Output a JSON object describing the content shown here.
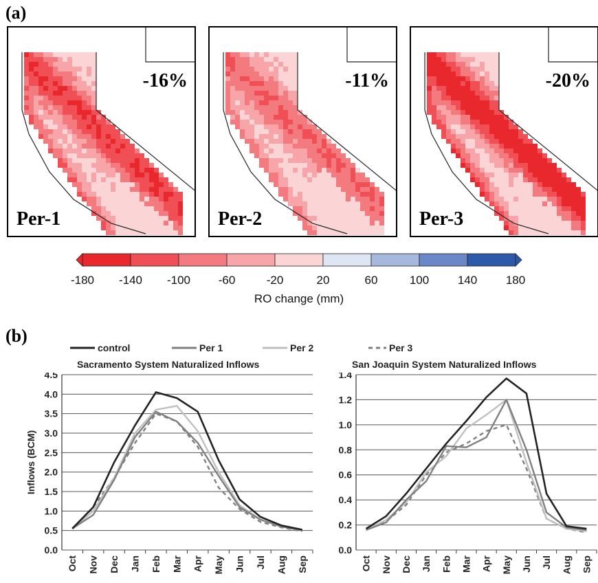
{
  "panel_a_label": "(a)",
  "panel_b_label": "(b)",
  "maps": [
    {
      "name": "Per-1",
      "change": "-16%"
    },
    {
      "name": "Per-2",
      "change": "-11%"
    },
    {
      "name": "Per-3",
      "change": "-20%"
    }
  ],
  "colorbar": {
    "title": "RO change (mm)",
    "ticks": [
      "-180",
      "-140",
      "-100",
      "-60",
      "-20",
      "20",
      "60",
      "100",
      "140",
      "180"
    ],
    "colors": [
      "#e8282d",
      "#ef4f55",
      "#f37b80",
      "#f7a5a8",
      "#fbd5d6",
      "#dfe6f3",
      "#a6b8dc",
      "#6a88c7",
      "#2c5aa8"
    ]
  },
  "legend": [
    {
      "label": "control",
      "color": "#222222",
      "dash": false
    },
    {
      "label": "Per 1",
      "color": "#7f7f7f",
      "dash": false
    },
    {
      "label": "Per 2",
      "color": "#bfbfbf",
      "dash": false
    },
    {
      "label": "Per 3",
      "color": "#7f7f7f",
      "dash": true
    }
  ],
  "chart_data": [
    {
      "type": "line",
      "title": "Sacramento System Naturalized Inflows",
      "ylabel": "Inflows (BCM)",
      "xlabel": "",
      "ylim": [
        0,
        4.5
      ],
      "yticks": [
        "0.0",
        "0.5",
        "1.0",
        "1.5",
        "2.0",
        "2.5",
        "3.0",
        "3.5",
        "4.0",
        "4.5"
      ],
      "ytick_values": [
        0,
        0.5,
        1.0,
        1.5,
        2.0,
        2.5,
        3.0,
        3.5,
        4.0,
        4.5
      ],
      "grid": true,
      "categories": [
        "Oct",
        "Nov",
        "Dec",
        "Jan",
        "Feb",
        "Mar",
        "Apr",
        "May",
        "Jun",
        "Jul",
        "Aug",
        "Sep"
      ],
      "series": [
        {
          "name": "control",
          "values": [
            0.55,
            1.1,
            2.25,
            3.2,
            4.05,
            3.9,
            3.55,
            2.3,
            1.3,
            0.85,
            0.63,
            0.52
          ]
        },
        {
          "name": "Per 1",
          "values": [
            0.55,
            0.9,
            1.8,
            2.9,
            3.55,
            3.3,
            2.75,
            1.9,
            1.1,
            0.78,
            0.6,
            0.5
          ]
        },
        {
          "name": "Per 2",
          "values": [
            0.55,
            1.0,
            1.85,
            3.0,
            3.6,
            3.7,
            3.05,
            2.0,
            1.15,
            0.78,
            0.6,
            0.5
          ]
        },
        {
          "name": "Per 3",
          "values": [
            0.55,
            1.1,
            1.85,
            2.75,
            3.5,
            3.3,
            2.65,
            1.6,
            1.05,
            0.72,
            0.58,
            0.48
          ]
        }
      ]
    },
    {
      "type": "line",
      "title": "San Joaquin System Naturalized Inflows",
      "ylabel": "",
      "xlabel": "",
      "ylim": [
        0,
        1.4
      ],
      "yticks": [
        "0.0",
        "0.2",
        "0.4",
        "0.6",
        "0.8",
        "1.0",
        "1.2",
        "1.4"
      ],
      "ytick_values": [
        0,
        0.2,
        0.4,
        0.6,
        0.8,
        1.0,
        1.2,
        1.4
      ],
      "grid": true,
      "categories": [
        "Oct",
        "Nov",
        "Dec",
        "Jan",
        "Feb",
        "Mar",
        "Apr",
        "May",
        "Jun",
        "Jul",
        "Aug",
        "Sep"
      ],
      "series": [
        {
          "name": "control",
          "values": [
            0.17,
            0.27,
            0.45,
            0.65,
            0.85,
            1.03,
            1.22,
            1.37,
            1.25,
            0.45,
            0.19,
            0.17
          ]
        },
        {
          "name": "Per 1",
          "values": [
            0.16,
            0.22,
            0.4,
            0.55,
            0.83,
            0.82,
            0.9,
            1.2,
            0.8,
            0.3,
            0.18,
            0.16
          ]
        },
        {
          "name": "Per 2",
          "values": [
            0.16,
            0.24,
            0.38,
            0.62,
            0.75,
            0.97,
            1.08,
            1.2,
            0.7,
            0.25,
            0.17,
            0.15
          ]
        },
        {
          "name": "Per 3",
          "values": [
            0.17,
            0.23,
            0.36,
            0.6,
            0.78,
            0.85,
            0.95,
            1.0,
            0.65,
            0.25,
            0.17,
            0.14
          ]
        }
      ]
    }
  ]
}
